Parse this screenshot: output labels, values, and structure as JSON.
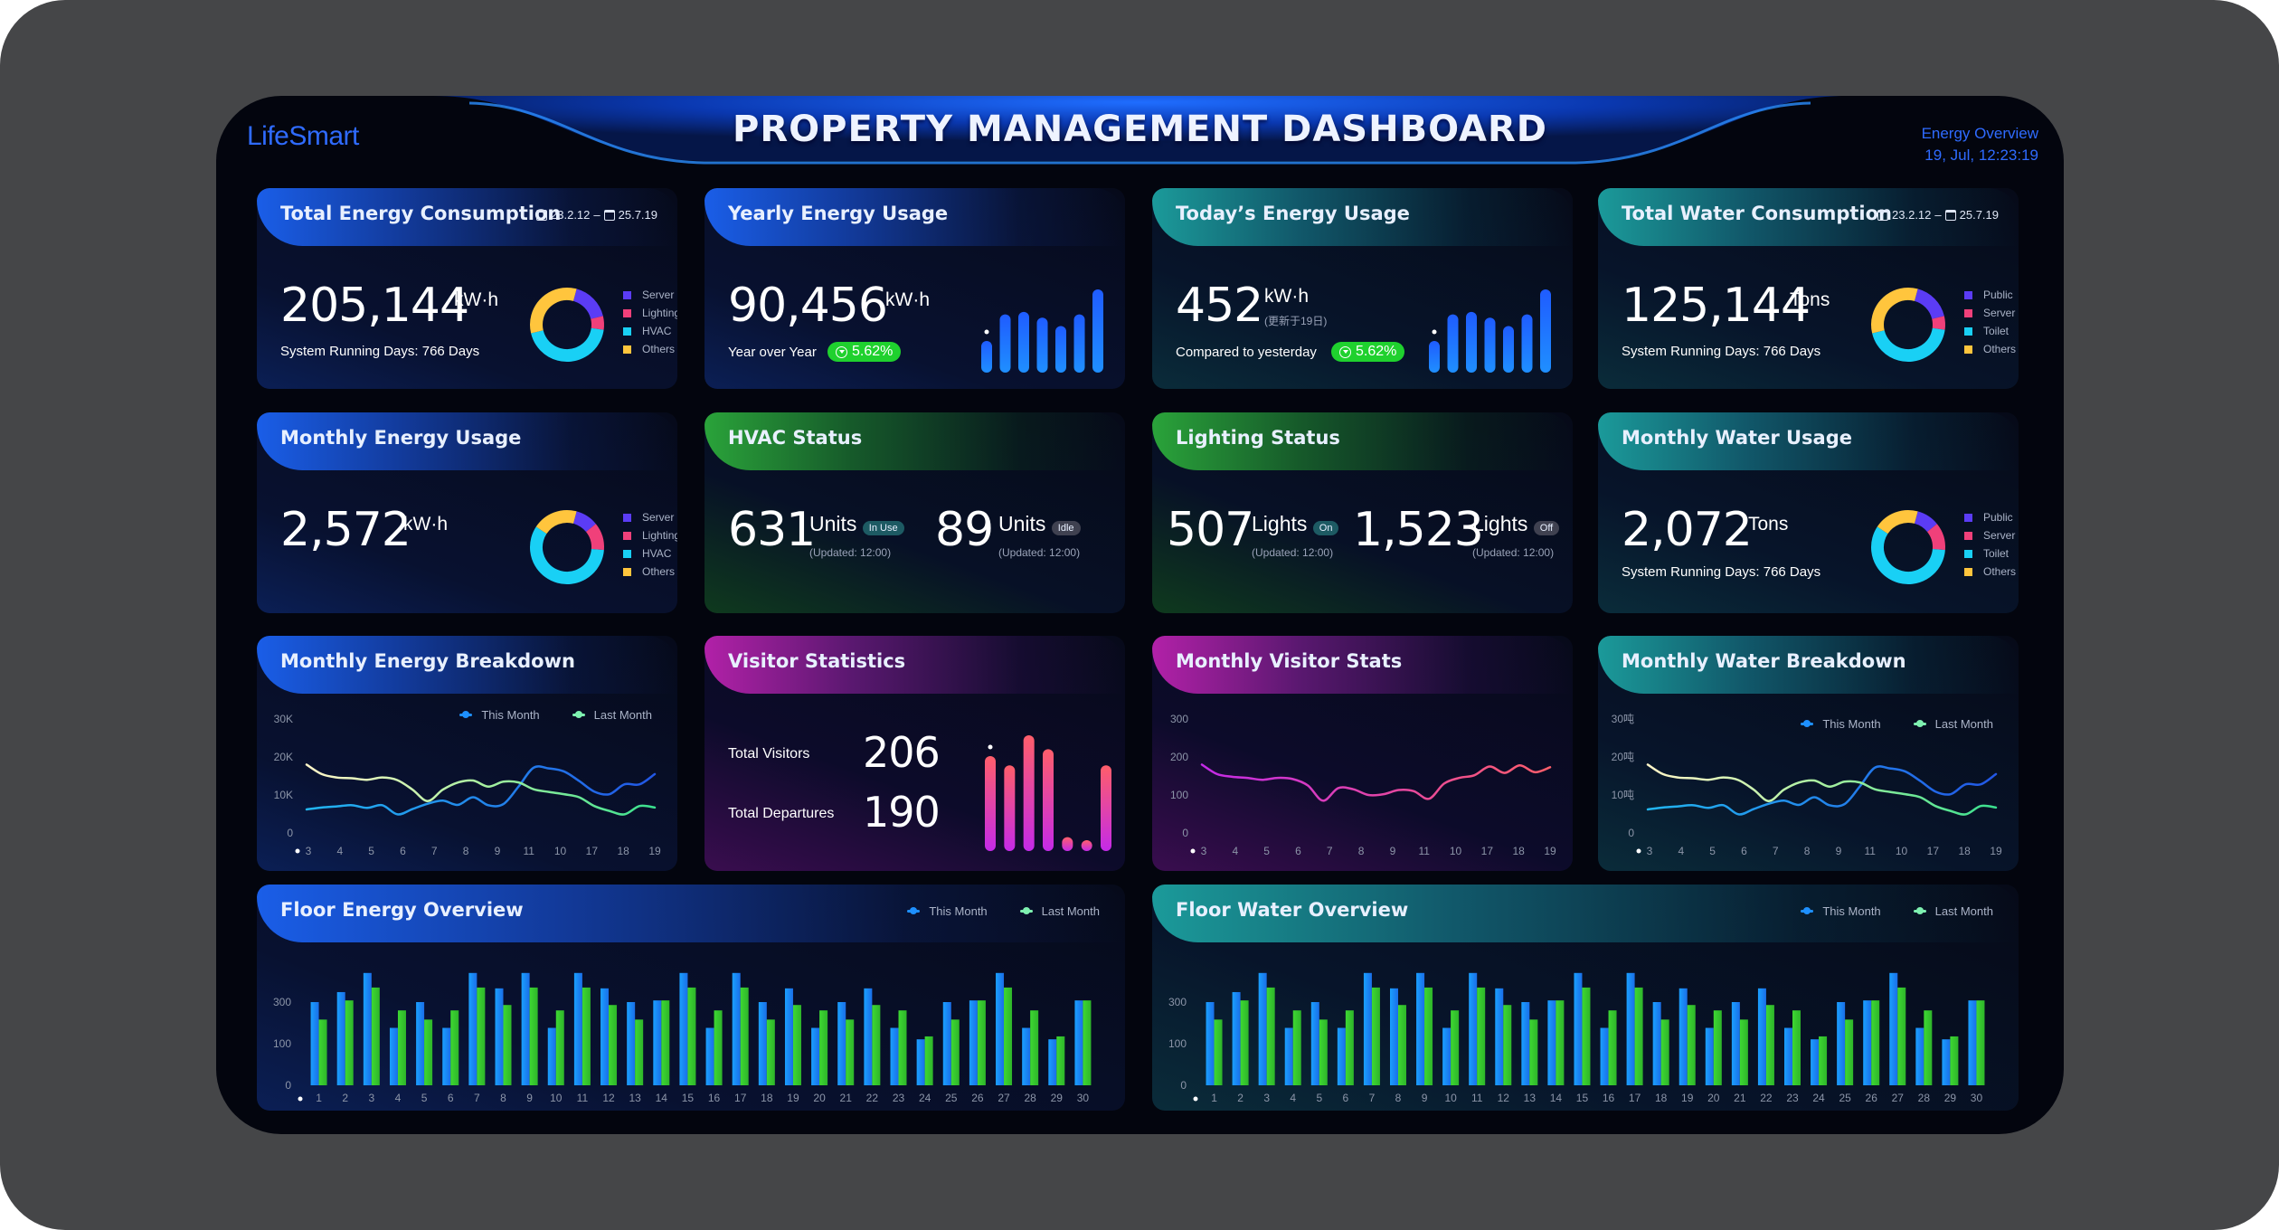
{
  "header": {
    "logo": "LifeSmart",
    "title": "PROPERTY MANAGEMENT DASHBOARD",
    "section": "Energy Overview",
    "datetime": "19, Jul,  12:23:19"
  },
  "colors": {
    "accent_blue": "#2f6bff",
    "donut": [
      "#5b3cf5",
      "#f0407a",
      "#19d0f5",
      "#ffc53d"
    ],
    "this_month": "#1e90ff",
    "last_month": "#34d32f",
    "trend_green": "#1fd12e"
  },
  "total_energy": {
    "title": "Total Energy Consumption",
    "date_from": "23.2.12",
    "date_sep": "–",
    "date_to": "25.7.19",
    "value": "205,144",
    "unit": "kW·h",
    "subtitle": "System Running Days: 766 Days",
    "legend": [
      "Server",
      "Lighting",
      "HVAC",
      "Others"
    ],
    "donut_values": [
      17,
      6,
      44,
      33
    ]
  },
  "yearly_energy": {
    "title": "Yearly Energy Usage",
    "value": "90,456",
    "unit": "kW·h",
    "compare_label": "Year over Year",
    "trend": "5.62%",
    "trend_direction": "down",
    "spark": [
      0.38,
      0.7,
      0.73,
      0.66,
      0.56,
      0.7,
      1.0
    ]
  },
  "today_energy": {
    "title": "Today’s Energy Usage",
    "value": "452",
    "unit": "kW·h",
    "note": "(更新于19日)",
    "compare_label": "Compared to yesterday",
    "trend": "5.62%",
    "trend_direction": "down",
    "spark": [
      0.38,
      0.7,
      0.73,
      0.66,
      0.56,
      0.7,
      1.0
    ]
  },
  "total_water": {
    "title": "Total Water Consumption",
    "date_from": "23.2.12",
    "date_sep": "–",
    "date_to": "25.7.19",
    "value": "125,144",
    "unit": "Tons",
    "subtitle": "System Running Days: 766 Days",
    "legend": [
      "Public",
      "Server",
      "Toilet",
      "Others"
    ],
    "donut_values": [
      17,
      6,
      44,
      33
    ]
  },
  "monthly_energy": {
    "title": "Monthly Energy Usage",
    "value": "2,572",
    "unit": "kW·h",
    "legend": [
      "Server",
      "Lighting",
      "HVAC",
      "Others"
    ],
    "donut_values": [
      10,
      12,
      58,
      20
    ]
  },
  "hvac": {
    "title": "HVAC Status",
    "items": [
      {
        "value": "631",
        "unit": "Units",
        "badge": "In Use",
        "updated": "(Updated: 12:00)"
      },
      {
        "value": "89",
        "unit": "Units",
        "badge": "Idle",
        "updated": "(Updated: 12:00)"
      }
    ]
  },
  "lighting": {
    "title": "Lighting Status",
    "items": [
      {
        "value": "507",
        "unit": "Lights",
        "badge": "On",
        "updated": "(Updated: 12:00)"
      },
      {
        "value": "1,523",
        "unit": "Lights",
        "badge": "Off",
        "updated": "(Updated: 12:00)"
      }
    ]
  },
  "monthly_water": {
    "title": "Monthly Water Usage",
    "value": "2,072",
    "unit": "Tons",
    "subtitle": "System Running Days: 766 Days",
    "legend": [
      "Public",
      "Server",
      "Toilet",
      "Others"
    ],
    "donut_values": [
      10,
      12,
      58,
      20
    ]
  },
  "visitors": {
    "title": "Visitor Statistics",
    "total_visitors_label": "Total Visitors",
    "total_visitors": "206",
    "total_departures_label": "Total Departures",
    "total_departures": "190",
    "spark": [
      0.82,
      0.74,
      1.0,
      0.88,
      0.12,
      0.09,
      0.74
    ]
  },
  "chart_data": [
    {
      "id": "monthly_energy_breakdown",
      "type": "line",
      "title": "Monthly Energy Breakdown",
      "x_ticks": [
        "3",
        "4",
        "5",
        "6",
        "7",
        "8",
        "9",
        "11",
        "10",
        "17",
        "18",
        "19"
      ],
      "yticks": [
        "0",
        "10K",
        "20K",
        "30K"
      ],
      "ylim": [
        0,
        30000
      ],
      "legend": [
        "This Month",
        "Last Month"
      ],
      "legend_position": "top-right",
      "series": [
        {
          "name": "This Month",
          "values": [
            6200,
            6700,
            7000,
            7300,
            6600,
            7300,
            4900,
            6300,
            7700,
            8500,
            7400,
            9400,
            7300,
            7600,
            12200,
            17200,
            17000,
            16200,
            13700,
            10900,
            10200,
            12800,
            12800,
            15500
          ]
        },
        {
          "name": "Last Month",
          "values": [
            18000,
            15500,
            14600,
            14400,
            14000,
            14600,
            13900,
            11400,
            8400,
            11400,
            13300,
            13800,
            12200,
            13500,
            13300,
            11500,
            10800,
            10200,
            9400,
            7100,
            5800,
            4900,
            7100,
            6700
          ]
        }
      ]
    },
    {
      "id": "monthly_visitor_stats",
      "type": "line",
      "title": "Monthly Visitor Stats",
      "x_ticks": [
        "3",
        "4",
        "5",
        "6",
        "7",
        "8",
        "9",
        "11",
        "10",
        "17",
        "18",
        "19"
      ],
      "yticks": [
        "0",
        "100",
        "200",
        "300"
      ],
      "ylim": [
        0,
        300
      ],
      "series": [
        {
          "name": "Visitors",
          "values": [
            180,
            155,
            148,
            145,
            140,
            145,
            142,
            125,
            85,
            118,
            115,
            100,
            102,
            113,
            110,
            90,
            130,
            145,
            152,
            175,
            158,
            178,
            160,
            173
          ]
        }
      ]
    },
    {
      "id": "monthly_water_breakdown",
      "type": "line",
      "title": "Monthly Water Breakdown",
      "x_ticks": [
        "3",
        "4",
        "5",
        "6",
        "7",
        "8",
        "9",
        "11",
        "10",
        "17",
        "18",
        "19"
      ],
      "yticks": [
        "0",
        "10吨",
        "20吨",
        "30吨"
      ],
      "ylim": [
        0,
        30
      ],
      "legend": [
        "This Month",
        "Last Month"
      ],
      "legend_position": "top-right",
      "series": [
        {
          "name": "This Month",
          "values": [
            6.2,
            6.7,
            7.0,
            7.3,
            6.6,
            7.3,
            4.9,
            6.3,
            7.7,
            8.5,
            7.4,
            9.4,
            7.3,
            7.6,
            12.2,
            17.2,
            17.0,
            16.2,
            13.7,
            10.9,
            10.2,
            12.8,
            12.8,
            15.5
          ]
        },
        {
          "name": "Last Month",
          "values": [
            18.0,
            15.5,
            14.6,
            14.4,
            14.0,
            14.6,
            13.9,
            11.4,
            8.4,
            11.4,
            13.3,
            13.8,
            12.2,
            13.5,
            13.3,
            11.5,
            10.8,
            10.2,
            9.4,
            7.1,
            5.8,
            4.9,
            7.1,
            6.7
          ]
        }
      ]
    },
    {
      "id": "floor_energy_overview",
      "type": "bar",
      "title": "Floor Energy Overview",
      "categories": [
        "1",
        "2",
        "3",
        "4",
        "5",
        "6",
        "7",
        "8",
        "9",
        "10",
        "11",
        "12",
        "13",
        "14",
        "15",
        "16",
        "17",
        "18",
        "19",
        "20",
        "21",
        "22",
        "23",
        "24",
        "25",
        "26",
        "27",
        "28",
        "29",
        "30"
      ],
      "yticks": [
        "0",
        "100",
        "300"
      ],
      "legend": [
        "This Month",
        "Last Month"
      ],
      "legend_position": "top-right",
      "series": [
        {
          "name": "This Month",
          "values": [
            300,
            348,
            440,
            176,
            300,
            176,
            440,
            366,
            440,
            176,
            440,
            366,
            300,
            308,
            440,
            176,
            440,
            300,
            366,
            176,
            300,
            366,
            176,
            121,
            300,
            308,
            440,
            176,
            121,
            308
          ]
        },
        {
          "name": "Last Month",
          "values": [
            216,
            308,
            370,
            260,
            216,
            260,
            370,
            286,
            370,
            260,
            370,
            286,
            216,
            308,
            370,
            260,
            370,
            216,
            286,
            260,
            216,
            286,
            260,
            135,
            216,
            308,
            370,
            260,
            135,
            308
          ]
        }
      ]
    },
    {
      "id": "floor_water_overview",
      "type": "bar",
      "title": "Floor Water Overview",
      "categories": [
        "1",
        "2",
        "3",
        "4",
        "5",
        "6",
        "7",
        "8",
        "9",
        "10",
        "11",
        "12",
        "13",
        "14",
        "15",
        "16",
        "17",
        "18",
        "19",
        "20",
        "21",
        "22",
        "23",
        "24",
        "25",
        "26",
        "27",
        "28",
        "29",
        "30"
      ],
      "yticks": [
        "0",
        "100",
        "300"
      ],
      "legend": [
        "This Month",
        "Last Month"
      ],
      "legend_position": "top-right",
      "series": [
        {
          "name": "This Month",
          "values": [
            300,
            348,
            440,
            176,
            300,
            176,
            440,
            366,
            440,
            176,
            440,
            366,
            300,
            308,
            440,
            176,
            440,
            300,
            366,
            176,
            300,
            366,
            176,
            121,
            300,
            308,
            440,
            176,
            121,
            308
          ]
        },
        {
          "name": "Last Month",
          "values": [
            216,
            308,
            370,
            260,
            216,
            260,
            370,
            286,
            370,
            260,
            370,
            286,
            216,
            308,
            370,
            260,
            370,
            216,
            286,
            260,
            216,
            286,
            260,
            135,
            216,
            308,
            370,
            260,
            135,
            308
          ]
        }
      ]
    }
  ]
}
